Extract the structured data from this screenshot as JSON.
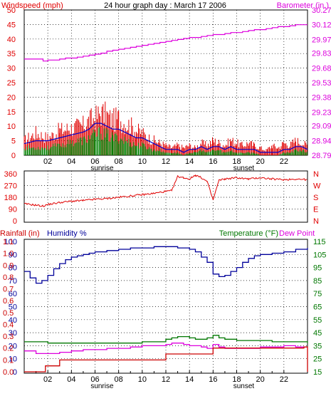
{
  "colors": {
    "wind": "#e00000",
    "gust_avg": "#0000cc",
    "wind_low": "#008000",
    "barometer": "#dd00dd",
    "direction": "#e00000",
    "humidity": "#00009a",
    "rainfall": "#cc0000",
    "temperature": "#007700",
    "dew_point": "#dd00dd",
    "axis_text": "#000000"
  },
  "chart_data": [
    {
      "type": "line",
      "panel": "wind-barometer",
      "title": "24 hour graph day : March 17 2006",
      "left_label": "Windspeed (mph)",
      "right_label": "Barometer (in.)",
      "ylim": [
        0,
        50
      ],
      "y_ticks": [
        "0",
        "5",
        "10",
        "15",
        "20",
        "25",
        "30",
        "35",
        "40",
        "45",
        "50"
      ],
      "y2lim": [
        28.79,
        30.27
      ],
      "y2_ticks": [
        "28.79",
        "28.94",
        "29.09",
        "29.23",
        "29.38",
        "29.53",
        "29.68",
        "29.83",
        "29.97",
        "30.12",
        "30.27"
      ],
      "x_ticks": [
        "02",
        "04",
        "06",
        "08",
        "10",
        "12",
        "14",
        "16",
        "18",
        "20",
        "22"
      ],
      "x_annotations": [
        {
          "label": "sunrise",
          "x": 6.6
        },
        {
          "label": "sunset",
          "x": 18.6
        }
      ],
      "series": [
        {
          "key": "barometer",
          "axis": "right",
          "x": [
            0,
            1.6,
            2,
            2.5,
            3,
            3.5,
            4,
            4.5,
            5,
            5.5,
            6,
            6.5,
            7,
            7.5,
            8,
            8.5,
            9,
            9.5,
            10,
            10.5,
            11,
            11.5,
            12,
            12.5,
            13,
            13.5,
            14,
            14.5,
            15,
            15.5,
            16,
            16.5,
            17,
            17.5,
            18,
            18.5,
            19,
            19.5,
            20,
            20.5,
            21,
            21.5,
            22,
            22.5,
            23,
            24
          ],
          "y": [
            29.77,
            29.75,
            29.76,
            29.76,
            29.77,
            29.78,
            29.78,
            29.79,
            29.8,
            29.81,
            29.82,
            29.83,
            29.85,
            29.86,
            29.87,
            29.88,
            29.89,
            29.9,
            29.91,
            29.92,
            29.93,
            29.94,
            29.95,
            29.96,
            29.97,
            29.98,
            29.99,
            29.99,
            30.0,
            30.01,
            30.02,
            30.02,
            30.03,
            30.04,
            30.04,
            30.05,
            30.06,
            30.07,
            30.07,
            30.08,
            30.09,
            30.1,
            30.1,
            30.11,
            30.12,
            30.12
          ]
        },
        {
          "key": "wind",
          "x": [
            0,
            1,
            2,
            3,
            4,
            5,
            5.5,
            6,
            6.5,
            7,
            7.5,
            8,
            8.5,
            9,
            9.5,
            10,
            10.5,
            11,
            11.5,
            12,
            12.5,
            13,
            13.5,
            14,
            14.5,
            15,
            15.5,
            16,
            16.5,
            17,
            17.5,
            18,
            18.5,
            19,
            19.5,
            20,
            20.5,
            21,
            21.5,
            22,
            22.5,
            23,
            23.5,
            24
          ],
          "y": [
            6,
            9,
            7,
            10,
            11,
            12,
            14,
            15,
            17,
            16,
            14,
            15,
            13,
            12,
            10,
            9,
            7,
            6,
            5,
            4,
            3,
            4,
            3,
            4,
            3,
            5,
            4,
            6,
            5,
            4,
            6,
            5,
            4,
            5,
            4,
            3,
            2,
            4,
            3,
            5,
            4,
            6,
            5,
            4
          ]
        },
        {
          "key": "gust_avg",
          "x": [
            0,
            1,
            2,
            3,
            4,
            5,
            5.5,
            6,
            6.5,
            7,
            7.5,
            8,
            8.5,
            9,
            9.5,
            10,
            10.5,
            11,
            11.5,
            12,
            12.5,
            13,
            13.5,
            14,
            14.5,
            15,
            15.5,
            16,
            16.5,
            17,
            17.5,
            18,
            18.5,
            19,
            19.5,
            20,
            20.5,
            21,
            21.5,
            22,
            22.5,
            23,
            23.5,
            24
          ],
          "y": [
            4,
            5,
            5,
            6,
            7,
            8,
            9,
            11,
            11,
            10,
            9,
            9,
            8,
            7,
            6,
            6,
            5,
            4,
            3,
            2,
            2,
            2,
            1,
            2,
            2,
            3,
            2,
            3,
            3,
            2,
            3,
            2,
            2,
            2,
            2,
            1,
            1,
            1,
            1,
            2,
            2,
            3,
            3,
            2
          ]
        },
        {
          "key": "wind_low",
          "x": [
            0,
            1,
            2,
            3,
            4,
            5,
            5.5,
            6,
            6.5,
            7,
            7.5,
            8,
            8.5,
            9,
            9.5,
            10,
            10.5,
            11,
            11.5,
            12,
            12.5,
            13,
            13.5,
            14,
            14.5,
            15,
            15.5,
            16,
            16.5,
            17,
            17.5,
            18,
            18.5,
            19,
            19.5,
            20,
            20.5,
            21,
            21.5,
            22,
            22.5,
            23,
            23.5,
            24
          ],
          "y": [
            3,
            3,
            3,
            4,
            5,
            6,
            7,
            8,
            9,
            8,
            7,
            7,
            6,
            5,
            4,
            4,
            3,
            2,
            2,
            1,
            1,
            1,
            0,
            1,
            1,
            2,
            1,
            2,
            2,
            1,
            2,
            1,
            1,
            1,
            1,
            0,
            0,
            0,
            0,
            1,
            1,
            2,
            2,
            1
          ]
        }
      ]
    },
    {
      "type": "line",
      "panel": "wind-direction",
      "ylim": [
        0,
        360
      ],
      "y_ticks": [
        "0",
        "90",
        "180",
        "270",
        "360"
      ],
      "right_labels": [
        "N",
        "W",
        "S",
        "E",
        "N"
      ],
      "series": [
        {
          "key": "direction",
          "x": [
            0,
            1,
            1.6,
            2,
            3,
            4,
            5,
            6,
            7,
            8,
            9,
            10,
            11,
            12,
            12.5,
            13,
            13.5,
            14,
            14.5,
            15,
            15.5,
            16,
            16.5,
            17,
            18,
            19,
            20,
            21,
            22,
            23,
            24
          ],
          "y": [
            130,
            120,
            112,
            125,
            140,
            150,
            155,
            165,
            170,
            180,
            190,
            200,
            210,
            225,
            230,
            340,
            330,
            320,
            350,
            330,
            300,
            160,
            310,
            320,
            330,
            320,
            330,
            320,
            315,
            320,
            315
          ]
        }
      ]
    },
    {
      "type": "line",
      "panel": "humidity-rain-temperature",
      "left_label_1": "Rainfall (in)",
      "left_label_2": "Humidity %",
      "right_label_1": "Temperature (°F)",
      "right_label_2": "Dew Point",
      "humidity_ticks": [
        "0",
        "10",
        "20",
        "30",
        "40",
        "50",
        "60",
        "70",
        "80",
        "90",
        "100"
      ],
      "rain_ticks": [
        "0.0",
        "0.1",
        "0.2",
        "0.3",
        "0.4",
        "0.5",
        "0.6",
        "0.7",
        "0.8",
        "0.9",
        "1.0",
        "1.1"
      ],
      "temp_ticks": [
        "15",
        "25",
        "35",
        "45",
        "55",
        "65",
        "75",
        "85",
        "95",
        "105",
        "115"
      ],
      "humidity_lim": [
        0,
        100
      ],
      "rain_lim": [
        0,
        1.1
      ],
      "temp_lim": [
        15,
        115
      ],
      "series": [
        {
          "key": "humidity",
          "axis": "humidity",
          "x": [
            0,
            0.5,
            1,
            1.5,
            2,
            2.5,
            3,
            3.5,
            4,
            4.5,
            5,
            5.5,
            6,
            7,
            8,
            9,
            10,
            11,
            12,
            13,
            14,
            14.5,
            15,
            15.5,
            16,
            16.5,
            17,
            17.5,
            18,
            18.5,
            19,
            19.5,
            20,
            21,
            22,
            23,
            24
          ],
          "y": [
            77,
            72,
            68,
            70,
            74,
            79,
            83,
            86,
            88,
            89,
            90,
            91,
            92,
            93,
            94,
            95,
            95,
            96,
            96,
            95,
            94,
            92,
            88,
            84,
            75,
            73,
            74,
            77,
            80,
            84,
            87,
            89,
            90,
            91,
            92,
            94,
            95
          ]
        },
        {
          "key": "temperature",
          "axis": "temp",
          "x": [
            0,
            1,
            2,
            3,
            4,
            5,
            6,
            7,
            8,
            9,
            10,
            11,
            12,
            12.5,
            13,
            13.5,
            14,
            14.5,
            15,
            15.5,
            16,
            16.5,
            17,
            18,
            19,
            20,
            21,
            22,
            23,
            24
          ],
          "y": [
            38,
            38,
            37,
            37,
            37,
            37,
            37,
            37,
            37,
            37,
            38,
            38,
            40,
            41,
            42,
            42,
            41,
            40,
            40,
            41,
            43,
            41,
            40,
            39,
            39,
            39,
            38,
            38,
            38,
            37
          ]
        },
        {
          "key": "dew_point",
          "axis": "temp",
          "x": [
            0,
            1,
            2,
            3,
            4,
            5,
            6,
            7,
            8,
            9,
            10,
            11,
            12,
            12.5,
            13,
            13.5,
            14,
            15,
            15.5,
            16,
            16.5,
            17,
            18,
            19,
            20,
            21,
            22,
            23,
            24
          ],
          "y": [
            31,
            29,
            29,
            30,
            31,
            32,
            32,
            33,
            33,
            34,
            35,
            35,
            36,
            37,
            37,
            36,
            35,
            34,
            33,
            36,
            34,
            33,
            33,
            33,
            34,
            34,
            35,
            34,
            34
          ]
        },
        {
          "key": "rainfall",
          "axis": "rain",
          "step": true,
          "x": [
            0,
            1.8,
            3,
            12,
            16,
            23.7,
            24
          ],
          "y": [
            0.0,
            0.05,
            0.1,
            0.15,
            0.2,
            0.21,
            0.0
          ]
        }
      ]
    }
  ]
}
